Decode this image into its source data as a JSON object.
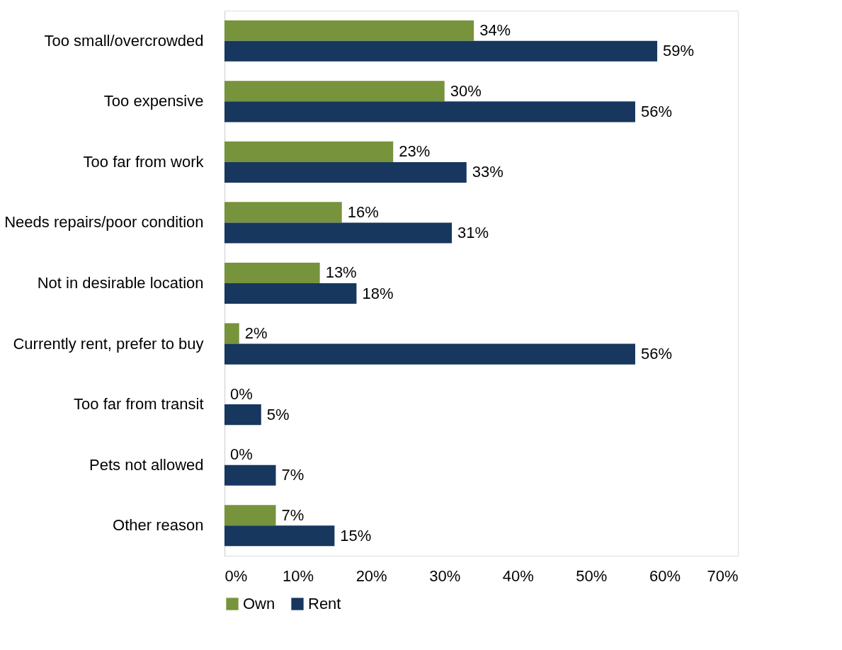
{
  "chart_data": {
    "type": "bar",
    "orientation": "horizontal",
    "categories": [
      "Too small/overcrowded",
      "Too expensive",
      "Too far from work",
      "Needs repairs/poor condition",
      "Not in desirable location",
      "Currently rent, prefer to buy",
      "Too far from transit",
      "Pets not allowed",
      "Other reason"
    ],
    "series": [
      {
        "name": "Own",
        "color": "#77933c",
        "values": [
          34,
          30,
          23,
          16,
          13,
          2,
          0,
          0,
          7
        ],
        "value_labels": [
          "34%",
          "30%",
          "23%",
          "16%",
          "13%",
          "2%",
          "0%",
          "0%",
          "7%"
        ]
      },
      {
        "name": "Rent",
        "color": "#17375e",
        "values": [
          59,
          56,
          33,
          31,
          18,
          56,
          5,
          7,
          15
        ],
        "value_labels": [
          "59%",
          "56%",
          "33%",
          "31%",
          "18%",
          "56%",
          "5%",
          "7%",
          "15%"
        ]
      }
    ],
    "xlim": [
      0,
      70
    ],
    "xticks": [
      {
        "value": 0,
        "label": "0%"
      },
      {
        "value": 10,
        "label": "10%"
      },
      {
        "value": 20,
        "label": "20%"
      },
      {
        "value": 30,
        "label": "30%"
      },
      {
        "value": 40,
        "label": "40%"
      },
      {
        "value": 50,
        "label": "50%"
      },
      {
        "value": 60,
        "label": "60%"
      },
      {
        "value": 70,
        "label": "70%"
      }
    ],
    "grid": false,
    "legend": "bottom"
  }
}
